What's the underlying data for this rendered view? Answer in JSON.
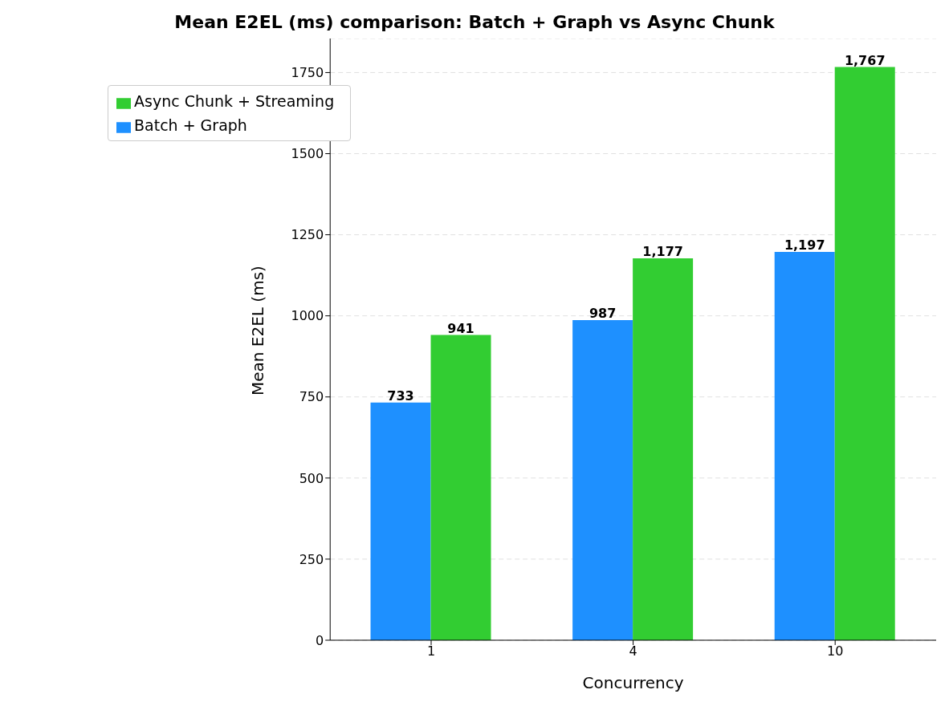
{
  "chart_data": {
    "type": "bar",
    "title": "Mean E2EL (ms) comparison: Batch + Graph vs Async Chunk",
    "xlabel": "Concurrency",
    "ylabel": "Mean E2EL (ms)",
    "categories": [
      "1",
      "4",
      "10"
    ],
    "series": [
      {
        "name": "Batch + Graph",
        "color": "#1e90ff",
        "values": [
          733,
          987,
          1197
        ],
        "value_labels": [
          "733",
          "987",
          "1,197"
        ]
      },
      {
        "name": "Async Chunk + Streaming",
        "color": "#32cd32",
        "values": [
          941,
          1177,
          1767
        ],
        "value_labels": [
          "941",
          "1,177",
          "1,767"
        ]
      }
    ],
    "ylim": [
      0,
      1855
    ],
    "yticks": [
      0,
      250,
      500,
      750,
      1000,
      1250,
      1500,
      1750
    ],
    "grid": "y",
    "legend": "top left"
  }
}
